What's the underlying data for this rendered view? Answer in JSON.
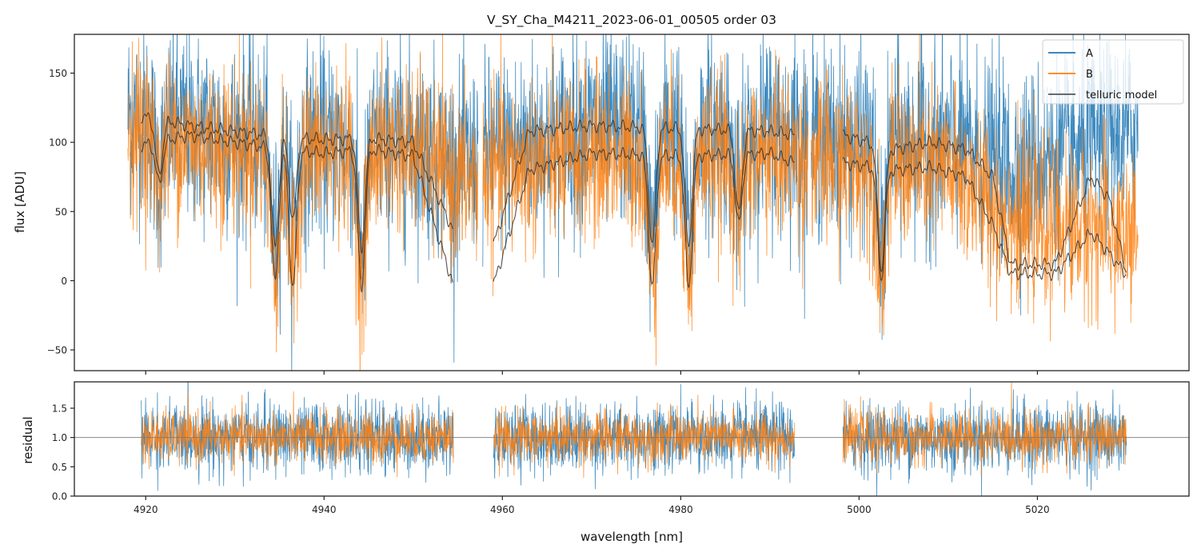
{
  "chart_data": [
    {
      "panel": "flux",
      "type": "line",
      "title": "V_SY_Cha_M4211_2023-06-01_00505  order 03",
      "xlabel": "",
      "ylabel": "flux [ADU]",
      "xlim": [
        4912,
        5037
      ],
      "ylim": [
        -65,
        178
      ],
      "yticks": [
        -50,
        0,
        50,
        100,
        150
      ],
      "ytick_labels": [
        "−50",
        "0",
        "50",
        "100",
        "150"
      ],
      "xticks": [
        4920,
        4940,
        4960,
        4980,
        5000,
        5020
      ],
      "grid": false,
      "legend": {
        "placement": "top-right",
        "entries": [
          {
            "label": "A",
            "color": "#1f77b4"
          },
          {
            "label": "B",
            "color": "#ff7f0e"
          },
          {
            "label": "telluric model",
            "color": "#555555"
          }
        ]
      },
      "series": [
        {
          "name": "A",
          "color": "#1f77b4",
          "kind": "noisy spectrum",
          "segments": [
            [
              4918,
              4957.3
            ],
            [
              4957.8,
              4994.3
            ],
            [
              4994.6,
              5031.3
            ]
          ],
          "continuum": [
            [
              4918,
              120
            ],
            [
              4925,
              110
            ],
            [
              4933,
              100
            ],
            [
              4940,
              98
            ],
            [
              4950,
              100
            ],
            [
              4955,
              80
            ],
            [
              4960,
              95
            ],
            [
              4970,
              110
            ],
            [
              4980,
              108
            ],
            [
              4990,
              108
            ],
            [
              4998,
              100
            ],
            [
              5010,
              100
            ],
            [
              5018,
              80
            ],
            [
              5025,
              95
            ],
            [
              5031,
              110
            ]
          ],
          "noise_sigma": 35
        },
        {
          "name": "B",
          "color": "#ff7f0e",
          "kind": "noisy spectrum",
          "segments": [
            [
              4918,
              4957.3
            ],
            [
              4957.8,
              4994.3
            ],
            [
              4994.6,
              5031.3
            ]
          ],
          "continuum": [
            [
              4918,
              110
            ],
            [
              4925,
              100
            ],
            [
              4933,
              95
            ],
            [
              4940,
              92
            ],
            [
              4950,
              95
            ],
            [
              4955,
              70
            ],
            [
              4960,
              80
            ],
            [
              4970,
              90
            ],
            [
              4980,
              90
            ],
            [
              4990,
              90
            ],
            [
              4998,
              85
            ],
            [
              5010,
              80
            ],
            [
              5018,
              40
            ],
            [
              5025,
              40
            ],
            [
              5031,
              30
            ]
          ],
          "noise_sigma": 30
        },
        {
          "name": "telluric model (A)",
          "color": "#333333",
          "segments": [
            [
              4919.5,
              4954.5
            ],
            [
              4959,
              4992.8
            ],
            [
              4998.2,
              5030
            ]
          ],
          "continuum": [
            [
              4919.5,
              119
            ],
            [
              4925,
              112
            ],
            [
              4930,
              108
            ],
            [
              4935,
              104
            ],
            [
              4940,
              102
            ],
            [
              4945,
              103
            ],
            [
              4950,
              100
            ],
            [
              4954.5,
              36
            ],
            [
              4959,
              26
            ],
            [
              4963,
              108
            ],
            [
              4970,
              112
            ],
            [
              4980,
              110
            ],
            [
              4990,
              108
            ],
            [
              4992.8,
              105
            ],
            [
              4998.2,
              105
            ],
            [
              5004,
              95
            ],
            [
              5008,
              100
            ],
            [
              5012,
              95
            ],
            [
              5015,
              75
            ],
            [
              5017,
              12
            ],
            [
              5022,
              12
            ],
            [
              5026,
              75
            ],
            [
              5028,
              60
            ],
            [
              5030,
              5
            ]
          ],
          "absorption_lines": [
            [
              4921.5,
              40
            ],
            [
              4934.5,
              80
            ],
            [
              4936.5,
              60
            ],
            [
              4944.2,
              80
            ],
            [
              4976.8,
              85
            ],
            [
              4980.9,
              85
            ],
            [
              4986.5,
              60
            ],
            [
              5002.5,
              90
            ]
          ]
        },
        {
          "name": "telluric model (B)",
          "color": "#333333",
          "segments": [
            [
              4919.5,
              4954.5
            ],
            [
              4959,
              4992.8
            ],
            [
              4998.2,
              5030
            ]
          ],
          "continuum": [
            [
              4919.5,
              98
            ],
            [
              4925,
              105
            ],
            [
              4930,
              100
            ],
            [
              4935,
              95
            ],
            [
              4940,
              92
            ],
            [
              4945,
              95
            ],
            [
              4950,
              90
            ],
            [
              4954.5,
              -3
            ],
            [
              4959,
              -3
            ],
            [
              4963,
              80
            ],
            [
              4970,
              92
            ],
            [
              4980,
              90
            ],
            [
              4990,
              92
            ],
            [
              4992.8,
              85
            ],
            [
              4998.2,
              85
            ],
            [
              5004,
              80
            ],
            [
              5008,
              82
            ],
            [
              5012,
              75
            ],
            [
              5015,
              40
            ],
            [
              5017,
              5
            ],
            [
              5022,
              5
            ],
            [
              5026,
              35
            ],
            [
              5028,
              20
            ],
            [
              5030,
              4
            ]
          ],
          "absorption_lines": [
            [
              4921.5,
              30
            ],
            [
              4934.5,
              95
            ],
            [
              4936.5,
              100
            ],
            [
              4944.2,
              100
            ],
            [
              4976.8,
              95
            ],
            [
              4980.9,
              95
            ],
            [
              4986.5,
              50
            ],
            [
              5002.5,
              80
            ]
          ]
        }
      ]
    },
    {
      "panel": "residual",
      "type": "line",
      "title": "",
      "xlabel": "wavelength [nm]",
      "ylabel": "residual",
      "xlim": [
        4912,
        5037
      ],
      "ylim": [
        0.0,
        1.95
      ],
      "yticks": [
        0.0,
        0.5,
        1.0,
        1.5
      ],
      "ytick_labels": [
        "0.0",
        "0.5",
        "1.0",
        "1.5"
      ],
      "xticks": [
        4920,
        4940,
        4960,
        4980,
        5000,
        5020
      ],
      "xtick_labels": [
        "4920",
        "4940",
        "4960",
        "4980",
        "5000",
        "5020"
      ],
      "grid": false,
      "reference_line": {
        "y": 1.0,
        "color": "#777777"
      },
      "series": [
        {
          "name": "A",
          "color": "#1f77b4",
          "center": 1.0,
          "noise_sigma": 0.3,
          "segments": [
            [
              4919.5,
              4954.5
            ],
            [
              4959,
              4992.8
            ],
            [
              4998.2,
              5030
            ]
          ]
        },
        {
          "name": "B",
          "color": "#ff7f0e",
          "center": 1.0,
          "noise_sigma": 0.22,
          "segments": [
            [
              4919.5,
              4954.5
            ],
            [
              4959,
              4992.8
            ],
            [
              4998.2,
              5030
            ]
          ]
        }
      ]
    }
  ]
}
